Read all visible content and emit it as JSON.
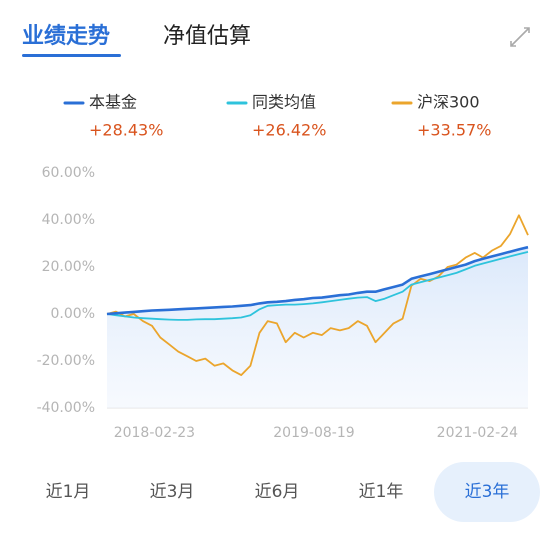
{
  "tabs": [
    "业绩走势",
    "净值估算"
  ],
  "active_tab": 0,
  "chart_data": {
    "type": "line",
    "x": [
      "2017-09-15",
      "2017-10-15",
      "2017-11-15",
      "2017-12-15",
      "2018-01-15",
      "2018-02-15",
      "2018-03-15",
      "2018-04-15",
      "2018-05-15",
      "2018-06-15",
      "2018-07-15",
      "2018-08-15",
      "2018-09-15",
      "2018-10-15",
      "2018-11-15",
      "2018-12-15",
      "2019-01-15",
      "2019-02-15",
      "2019-03-15",
      "2019-04-15",
      "2019-05-15",
      "2019-06-15",
      "2019-07-15",
      "2019-08-15",
      "2019-09-15",
      "2019-10-15",
      "2019-11-15",
      "2019-12-15",
      "2020-01-15",
      "2020-02-15",
      "2020-03-15",
      "2020-04-15",
      "2020-05-15",
      "2020-06-15",
      "2020-07-15",
      "2020-08-15",
      "2020-09-15",
      "2020-10-15",
      "2020-11-15",
      "2020-12-15",
      "2021-01-15",
      "2021-02-15",
      "2021-03-15",
      "2021-04-15",
      "2021-05-15",
      "2021-06-15",
      "2021-07-15",
      "2021-08-15"
    ],
    "xlim": [
      "2017-09-15",
      "2021-08-15"
    ],
    "xticks": [
      "2018-02-23",
      "2019-08-19",
      "2021-02-24"
    ],
    "ylim": [
      -40,
      60
    ],
    "yticks": [
      {
        "value": -40,
        "label": "-40.00%"
      },
      {
        "value": -20,
        "label": "-20.00%"
      },
      {
        "value": 0,
        "label": "0.00%"
      },
      {
        "value": 20,
        "label": "20.00%"
      },
      {
        "value": 40,
        "label": "40.00%"
      },
      {
        "value": 60,
        "label": "60.00%"
      }
    ],
    "series": [
      {
        "name": "本基金",
        "change": "+28.43%",
        "color": "#2a6fd6",
        "values": [
          0,
          0.3,
          0.6,
          0.9,
          1.2,
          1.5,
          1.6,
          1.8,
          2,
          2.2,
          2.4,
          2.6,
          2.8,
          3,
          3.2,
          3.5,
          3.8,
          4.5,
          5,
          5.2,
          5.5,
          6,
          6.3,
          6.8,
          7,
          7.5,
          8,
          8.3,
          9,
          9.5,
          9.5,
          10.5,
          11.5,
          12.5,
          15,
          16,
          17,
          18,
          19,
          20,
          21,
          22.5,
          23.5,
          24.5,
          25.5,
          26.5,
          27.5,
          28.43
        ]
      },
      {
        "name": "同类均值",
        "change": "+26.42%",
        "color": "#2ec3dc",
        "values": [
          0,
          -0.5,
          -1,
          -1.5,
          -1.8,
          -2,
          -2.2,
          -2.4,
          -2.5,
          -2.5,
          -2.3,
          -2.2,
          -2.2,
          -2,
          -1.8,
          -1.5,
          -0.5,
          2,
          3.5,
          3.8,
          4,
          4,
          4.2,
          4.5,
          5,
          5.5,
          6,
          6.5,
          7,
          7.2,
          5.5,
          6.5,
          8,
          9.5,
          12.5,
          13.5,
          14.5,
          15.5,
          16.5,
          17.5,
          19,
          20.5,
          21.5,
          22.5,
          23.5,
          24.5,
          25.5,
          26.42
        ]
      },
      {
        "name": "沪深300",
        "change": "+33.57%",
        "color": "#eba52c",
        "values": [
          0,
          1,
          -1,
          0,
          -3,
          -5,
          -10,
          -13,
          -16,
          -18,
          -20,
          -19,
          -22,
          -21,
          -24,
          -26,
          -22,
          -8,
          -3,
          -4,
          -12,
          -8,
          -10,
          -8,
          -9,
          -6,
          -7,
          -6,
          -3,
          -5,
          -12,
          -8,
          -4,
          -2,
          12,
          15,
          14,
          16,
          20,
          21,
          24,
          26,
          24,
          27,
          29,
          34,
          42,
          33.57
        ]
      }
    ]
  },
  "ranges": [
    "近1月",
    "近3月",
    "近6月",
    "近1年",
    "近3年"
  ],
  "active_range": 4
}
